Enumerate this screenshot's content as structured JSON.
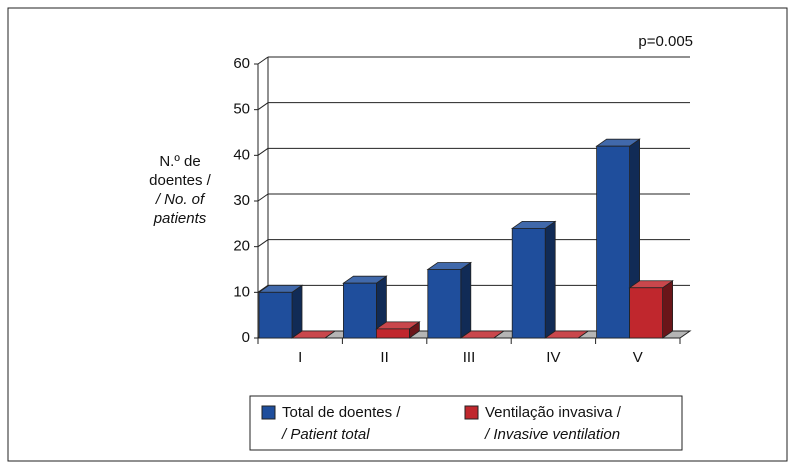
{
  "chart_data": {
    "type": "bar3d",
    "annotation": "p=0.005",
    "ylabel": [
      "N.º de",
      "doentes /",
      "/ No. of",
      "patients"
    ],
    "categories": [
      "I",
      "II",
      "III",
      "IV",
      "V"
    ],
    "series": [
      {
        "name": "Total de doentes /",
        "name_en": "/ Patient total",
        "color": "#1f4e9c",
        "values": [
          10,
          12,
          15,
          24,
          42
        ]
      },
      {
        "name": "Ventilação invasiva /",
        "name_en": "/ Invasive ventilation",
        "color": "#c0272d",
        "values": [
          0,
          2,
          0,
          0,
          11
        ]
      }
    ],
    "ylim": [
      0,
      60
    ],
    "yticks": [
      0,
      10,
      20,
      30,
      40,
      50,
      60
    ],
    "grid": true
  }
}
